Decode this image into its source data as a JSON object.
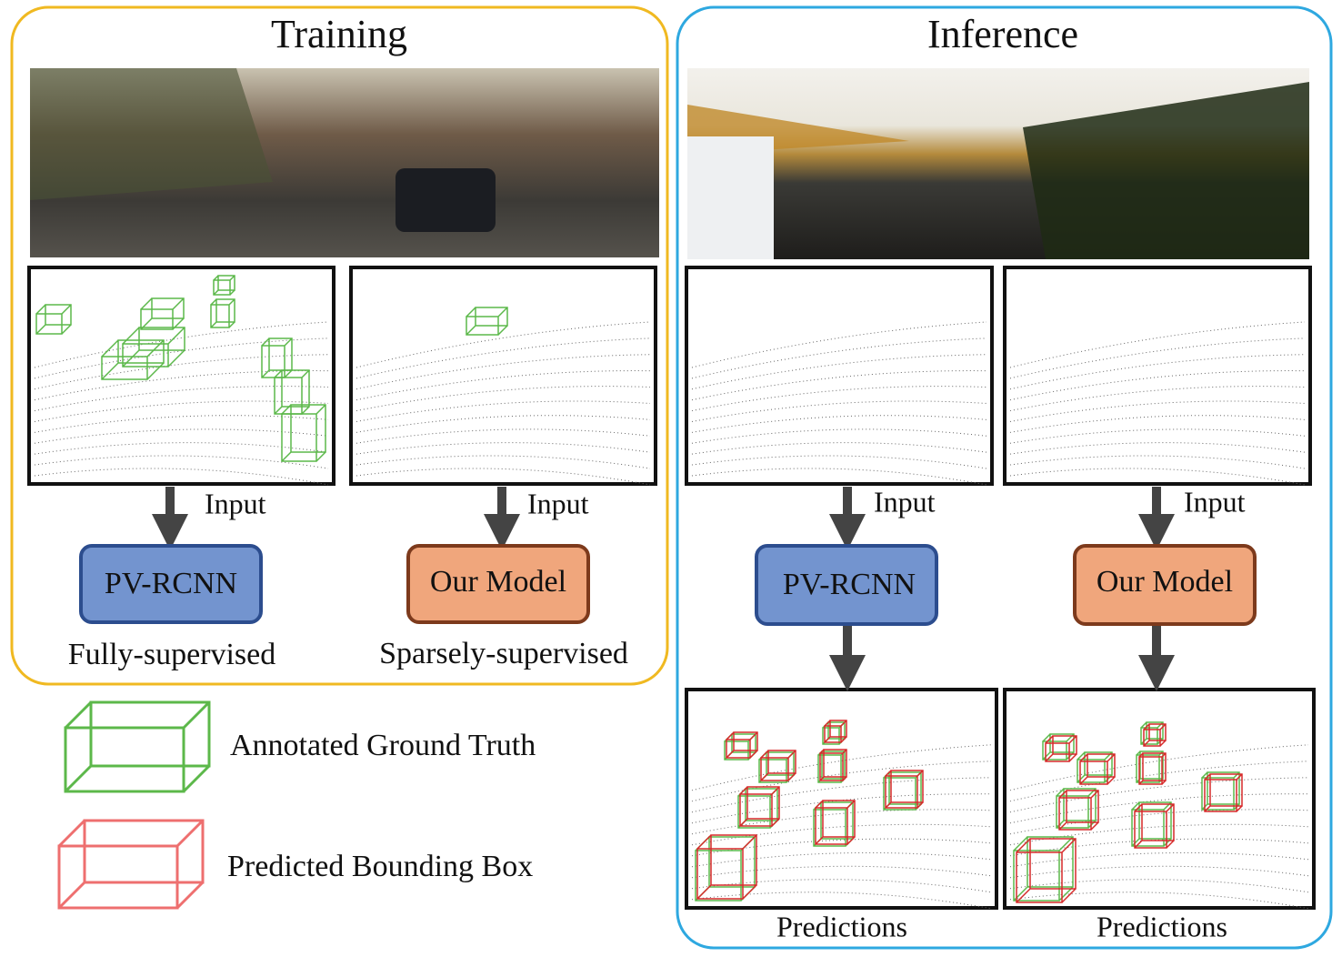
{
  "training": {
    "title": "Training",
    "branches": [
      {
        "input_label": "Input",
        "model": "PV-RCNN",
        "caption": "Fully-supervised"
      },
      {
        "input_label": "Input",
        "model": "Our Model",
        "caption": "Sparsely-supervised"
      }
    ]
  },
  "inference": {
    "title": "Inference",
    "branches": [
      {
        "input_label": "Input",
        "model": "PV-RCNN",
        "output": "Predictions"
      },
      {
        "input_label": "Input",
        "model": "Our Model",
        "output": "Predictions"
      }
    ]
  },
  "legend": [
    {
      "label": "Annotated Ground Truth"
    },
    {
      "label": "Predicted Bounding Box"
    }
  ]
}
